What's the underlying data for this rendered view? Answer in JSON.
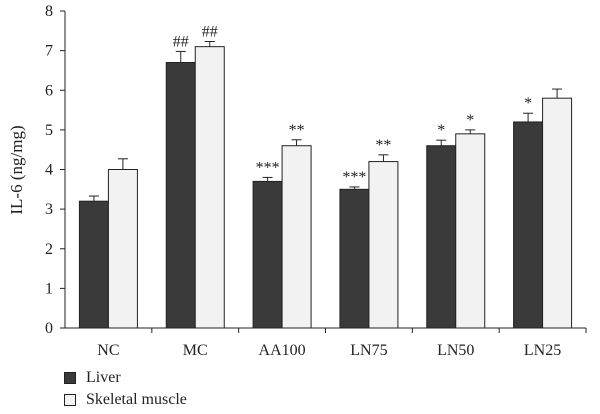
{
  "chart_data": {
    "type": "bar",
    "title": "",
    "xlabel": "",
    "ylabel": "IL-6 (ng/mg)",
    "ylim": [
      0,
      8
    ],
    "yticks": [
      0,
      1,
      2,
      3,
      4,
      5,
      6,
      7,
      8
    ],
    "grid": false,
    "legend_position": "bottom-left",
    "categories": [
      "NC",
      "MC",
      "AA100",
      "LN75",
      "LN50",
      "LN25"
    ],
    "series": [
      {
        "name": "Liver",
        "color": "#3a3a3a",
        "values": [
          3.2,
          6.7,
          3.7,
          3.5,
          4.6,
          5.2
        ],
        "errors": [
          0.13,
          0.28,
          0.1,
          0.06,
          0.14,
          0.22
        ],
        "annotations": [
          "",
          "##",
          "***",
          "***",
          "*",
          "*"
        ]
      },
      {
        "name": "Skeletal muscle",
        "color": "#f2f2f2",
        "values": [
          4.0,
          7.1,
          4.6,
          4.2,
          4.9,
          5.8
        ],
        "errors": [
          0.27,
          0.13,
          0.15,
          0.17,
          0.1,
          0.23
        ],
        "annotations": [
          "",
          "##",
          "**",
          "**",
          "*",
          ""
        ]
      }
    ]
  }
}
